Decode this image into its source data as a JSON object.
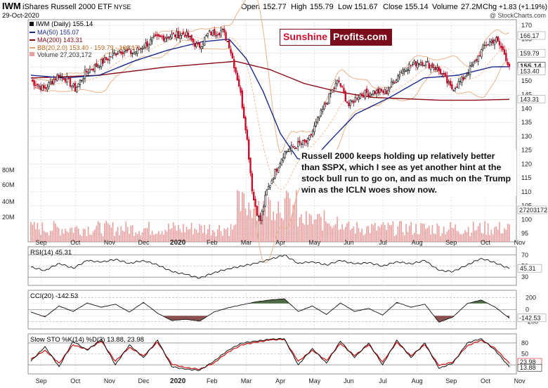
{
  "header": {
    "symbol": "IWM",
    "name": "iShares Russell 2000 ETF",
    "exchange": "NYSE",
    "date": "29-Oct-2020",
    "open_label": "Open",
    "open": "152.77",
    "high_label": "High",
    "high": "155.79",
    "low_label": "Low",
    "low": "151.67",
    "close_label": "Close",
    "close": "155.14",
    "volume_label": "Volume",
    "volume": "27.2M",
    "chg_label": "Chg",
    "chg": "+1.83 (+1.19%)",
    "credit": "@ StockCharts.com"
  },
  "legend": {
    "price": "IWM (Daily) 155.14",
    "ma50": "MA(50) 155.07",
    "ma200": "MA(200) 143.31",
    "bb": "BB(20,2.0) 153.40 - 159.79 - 166.17",
    "volume": "Volume 27,203,172"
  },
  "logo": {
    "part1": "Sunshine",
    "part2": "Profits.com"
  },
  "annotation": "Russell 2000 keeps holding up relatively better than $SPX, which I see as yet another hint at the stock bull run to go on, and as much on the Trump win as the ICLN woes show now.",
  "colors": {
    "ma50": "#1a2a8c",
    "ma200": "#8b0a16",
    "bb": "#e8b48a",
    "up": "#111111",
    "down": "#c8102e",
    "volume": "#e8a0a0",
    "rsi": "#111111",
    "cci_fill": "#4f6b46",
    "cci_neg": "#8a5050",
    "sto_k": "#111111",
    "sto_d": "#d01010"
  },
  "chart_data": [
    {
      "type": "candlestick",
      "title": "IWM (Daily) 155.14",
      "x_ticks": [
        "Sep",
        "Oct",
        "Nov",
        "Dec",
        "2020",
        "Feb",
        "Mar",
        "Apr",
        "May",
        "Jun",
        "Jul",
        "Aug",
        "Sep",
        "Oct",
        "Nov"
      ],
      "y_ticks": [
        95,
        100,
        105,
        110,
        115,
        120,
        125,
        130,
        135,
        140,
        145,
        150,
        155,
        160,
        165,
        170
      ],
      "ylim": [
        92,
        172
      ],
      "price_tags": [
        {
          "value": 166.17,
          "label": "166.17"
        },
        {
          "value": 159.79,
          "label": "159.79"
        },
        {
          "value": 155.14,
          "label": "155.14"
        },
        {
          "value": 153.4,
          "label": "153.40"
        },
        {
          "value": 143.31,
          "label": "143.31"
        }
      ],
      "volume_ticks": [
        "80M",
        "60M",
        "40M",
        "20M"
      ],
      "volume_tag": "27203172",
      "keypoints": [
        {
          "month": 0,
          "close": 150
        },
        {
          "month": 0.4,
          "close": 147
        },
        {
          "month": 0.8,
          "close": 152
        },
        {
          "month": 1.0,
          "close": 151
        },
        {
          "month": 1.3,
          "close": 147
        },
        {
          "month": 1.6,
          "close": 153
        },
        {
          "month": 2.0,
          "close": 156
        },
        {
          "month": 2.6,
          "close": 161
        },
        {
          "month": 3.0,
          "close": 160
        },
        {
          "month": 3.6,
          "close": 165
        },
        {
          "month": 4.0,
          "close": 166
        },
        {
          "month": 4.5,
          "close": 167
        },
        {
          "month": 4.9,
          "close": 162
        },
        {
          "month": 5.2,
          "close": 167
        },
        {
          "month": 5.6,
          "close": 168
        },
        {
          "month": 5.8,
          "close": 163
        },
        {
          "month": 6.1,
          "close": 148
        },
        {
          "month": 6.3,
          "close": 132
        },
        {
          "month": 6.5,
          "close": 108
        },
        {
          "month": 6.7,
          "close": 99
        },
        {
          "month": 6.9,
          "close": 110
        },
        {
          "month": 7.1,
          "close": 116
        },
        {
          "month": 7.4,
          "close": 124
        },
        {
          "month": 7.8,
          "close": 127
        },
        {
          "month": 8.1,
          "close": 128
        },
        {
          "month": 8.4,
          "close": 136
        },
        {
          "month": 8.8,
          "close": 146
        },
        {
          "month": 9.0,
          "close": 150
        },
        {
          "month": 9.3,
          "close": 141
        },
        {
          "month": 9.6,
          "close": 145
        },
        {
          "month": 10.0,
          "close": 146
        },
        {
          "month": 10.4,
          "close": 146
        },
        {
          "month": 10.8,
          "close": 153
        },
        {
          "month": 11.0,
          "close": 155
        },
        {
          "month": 11.4,
          "close": 157
        },
        {
          "month": 11.8,
          "close": 155
        },
        {
          "month": 12.0,
          "close": 153
        },
        {
          "month": 12.3,
          "close": 147
        },
        {
          "month": 12.6,
          "close": 150
        },
        {
          "month": 13.0,
          "close": 157
        },
        {
          "month": 13.3,
          "close": 163
        },
        {
          "month": 13.6,
          "close": 165
        },
        {
          "month": 13.85,
          "close": 160
        },
        {
          "month": 14.0,
          "close": 155.14
        }
      ],
      "ma50": [
        {
          "month": 0,
          "value": 152
        },
        {
          "month": 1,
          "value": 151
        },
        {
          "month": 2,
          "value": 152
        },
        {
          "month": 3,
          "value": 157
        },
        {
          "month": 4,
          "value": 161
        },
        {
          "month": 5,
          "value": 164
        },
        {
          "month": 5.8,
          "value": 165
        },
        {
          "month": 6.3,
          "value": 158
        },
        {
          "month": 6.8,
          "value": 146
        },
        {
          "month": 7.3,
          "value": 131
        },
        {
          "month": 7.8,
          "value": 122
        },
        {
          "month": 8.2,
          "value": 121
        },
        {
          "month": 8.8,
          "value": 129
        },
        {
          "month": 9.5,
          "value": 138
        },
        {
          "month": 10.5,
          "value": 144
        },
        {
          "month": 11.5,
          "value": 151
        },
        {
          "month": 12.5,
          "value": 152
        },
        {
          "month": 13.5,
          "value": 155
        },
        {
          "month": 14.0,
          "value": 155.07
        }
      ],
      "ma200": [
        {
          "month": 0,
          "value": 151
        },
        {
          "month": 2,
          "value": 152
        },
        {
          "month": 4,
          "value": 155
        },
        {
          "month": 6,
          "value": 157
        },
        {
          "month": 7,
          "value": 154
        },
        {
          "month": 8,
          "value": 149
        },
        {
          "month": 9,
          "value": 146
        },
        {
          "month": 10,
          "value": 144
        },
        {
          "month": 11,
          "value": 143.5
        },
        {
          "month": 12,
          "value": 143
        },
        {
          "month": 13,
          "value": 143
        },
        {
          "month": 14.0,
          "value": 143.31
        }
      ]
    },
    {
      "type": "line",
      "title": "RSI(14) 45.31",
      "y_ticks": [
        70,
        50,
        30
      ],
      "ylim": [
        15,
        85
      ],
      "last_label": "45.31",
      "values": [
        48,
        42,
        55,
        46,
        60,
        57,
        62,
        55,
        60,
        52,
        40,
        35,
        28,
        38,
        45,
        50,
        55,
        62,
        70,
        55,
        58,
        52,
        60,
        54,
        56,
        50,
        58,
        54,
        60,
        42,
        40,
        52,
        64,
        56,
        45.31
      ]
    },
    {
      "type": "area",
      "title": "CCI(20) -142.53",
      "y_ticks": [
        200,
        0,
        -200
      ],
      "ylim": [
        -320,
        320
      ],
      "last_label": "-142.53",
      "values": [
        -40,
        -120,
        60,
        -30,
        110,
        40,
        90,
        -40,
        120,
        -60,
        -180,
        -160,
        -190,
        -40,
        30,
        80,
        130,
        160,
        180,
        -30,
        60,
        -80,
        110,
        -30,
        20,
        -90,
        120,
        40,
        90,
        -210,
        -120,
        100,
        160,
        40,
        -142.53
      ]
    },
    {
      "type": "line",
      "title": "Slow STO %K(14) %D(3) 13.88, 23.98",
      "y_ticks": [
        80,
        50,
        20
      ],
      "ylim": [
        -5,
        105
      ],
      "k_label": "13.88",
      "d_label": "23.98",
      "k": [
        30,
        70,
        15,
        85,
        60,
        90,
        20,
        75,
        40,
        88,
        15,
        8,
        5,
        30,
        60,
        80,
        85,
        90,
        92,
        20,
        65,
        25,
        85,
        40,
        80,
        20,
        88,
        40,
        80,
        10,
        25,
        80,
        92,
        60,
        13.88
      ],
      "d": [
        35,
        60,
        25,
        75,
        62,
        85,
        30,
        68,
        45,
        82,
        22,
        12,
        8,
        25,
        55,
        75,
        82,
        88,
        90,
        30,
        60,
        32,
        78,
        45,
        75,
        28,
        82,
        45,
        75,
        18,
        28,
        72,
        88,
        65,
        23.98
      ]
    }
  ]
}
